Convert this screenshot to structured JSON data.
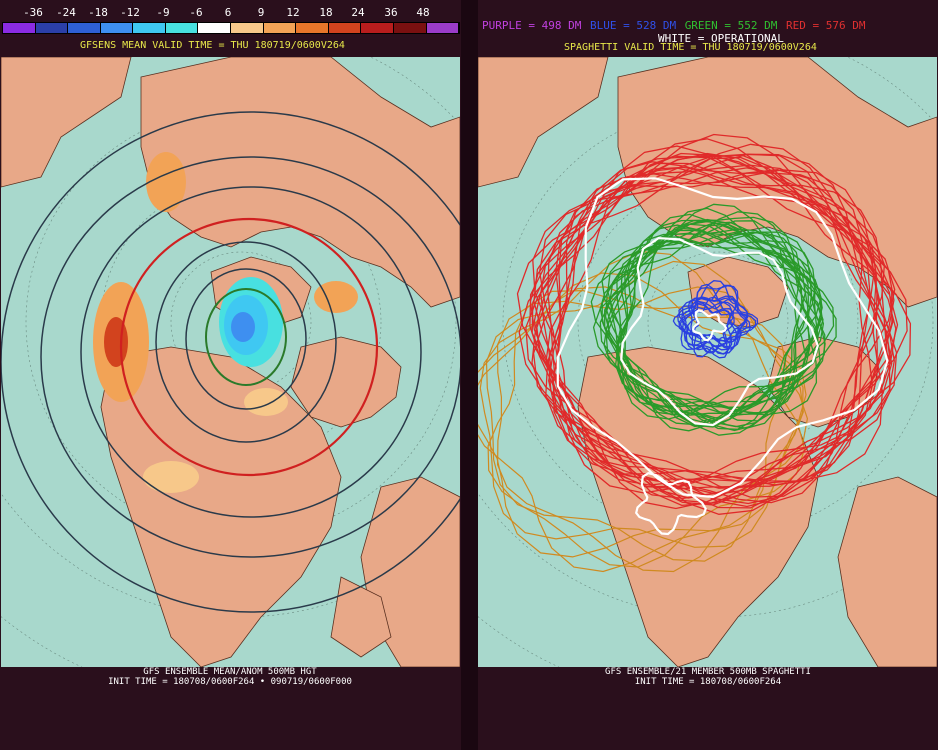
{
  "colorbar": {
    "ticks": [
      "-36",
      "-24",
      "-18",
      "-12",
      "-9",
      "-6",
      "6",
      "9",
      "12",
      "18",
      "24",
      "36",
      "48"
    ],
    "colors": [
      "#8a2be2",
      "#2b3fa8",
      "#2e5fd4",
      "#3e8ff0",
      "#3fc8f2",
      "#48e0e0",
      "#ffffff",
      "#f7c88a",
      "#f2a356",
      "#e8762a",
      "#d2431e",
      "#b81d1d",
      "#7a1010",
      "#9a3cc8"
    ]
  },
  "left": {
    "title": "GFSENS MEAN VALID TIME = THU 180719/0600V264",
    "footer_line1": "GFS ENSEMBLE MEAN/ANOM 500MB HGT",
    "footer_line2": "INIT TIME = 180708/0600F264 • 090719/0600F000"
  },
  "right": {
    "legend": [
      {
        "text": "PURPLE = 498 DM",
        "color": "#c040e0"
      },
      {
        "text": "BLUE = 528 DM",
        "color": "#3050e8"
      },
      {
        "text": "GREEN = 552 DM",
        "color": "#30c030"
      },
      {
        "text": "RED = 576 DM",
        "color": "#e03030"
      }
    ],
    "legend_white": "WHITE = OPERATIONAL",
    "title": "SPAGHETTI VALID TIME = THU 180719/0600V264",
    "footer_line1": "GFS ENSEMBLE/21 MEMBER 500MB SPAGHETTI",
    "footer_line2": "INIT TIME = 180708/0600F264"
  },
  "map_colors": {
    "ocean": "#a8d8cc",
    "land": "#e8a888",
    "border": "#5a3020",
    "grid": "#6a8a80"
  }
}
